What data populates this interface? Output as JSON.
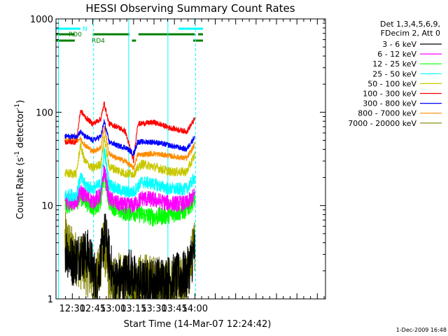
{
  "chart_data": {
    "type": "line",
    "title": "HESSI Observing Summary Count Rates",
    "xlabel": "Start Time (14-Mar-07 12:24:42)",
    "ylabel": "Count Rate (s",
    "ylabel_sup": "-1",
    "ylabel_tail": " detector",
    "ylabel_close": ")",
    "yscale": "log",
    "ylim": [
      1,
      1000
    ],
    "y_ticks": [
      {
        "value": 1,
        "label": "1"
      },
      {
        "value": 10,
        "label": "10"
      },
      {
        "value": 100,
        "label": "100"
      },
      {
        "value": 1000,
        "label": "1000"
      }
    ],
    "xlim_minutes": [
      12.3,
      15.6
    ],
    "x_ticks": [
      {
        "minutes": 12.5,
        "label": "12:30"
      },
      {
        "minutes": 12.75,
        "label": "12:45"
      },
      {
        "minutes": 13.0,
        "label": "13:00"
      },
      {
        "minutes": 13.25,
        "label": "13:15"
      },
      {
        "minutes": 13.5,
        "label": "13:30"
      },
      {
        "minutes": 13.75,
        "label": "13:45"
      },
      {
        "minutes": 14.0,
        "label": "14:00"
      }
    ],
    "legend_header": [
      "Det 1,3,4,5,6,9,",
      "FDecim 2, Att 0"
    ],
    "legend_position": "right",
    "series": [
      {
        "name": "3 - 6 keV",
        "color": "#000000",
        "points": [
          [
            12.41,
            3.5
          ],
          [
            12.5,
            2.5
          ],
          [
            12.6,
            3
          ],
          [
            12.7,
            3
          ],
          [
            12.8,
            1.5
          ],
          [
            12.9,
            5
          ],
          [
            13.0,
            1.6
          ],
          [
            13.1,
            1.5
          ],
          [
            13.2,
            2
          ],
          [
            13.3,
            1.4
          ],
          [
            13.5,
            1.5
          ],
          [
            13.7,
            1.6
          ],
          [
            13.9,
            1.8
          ],
          [
            14.0,
            3.5
          ]
        ]
      },
      {
        "name": "6 - 12 keV",
        "color": "#ff00ff",
        "points": [
          [
            12.41,
            11
          ],
          [
            12.55,
            11
          ],
          [
            12.6,
            14
          ],
          [
            12.7,
            12
          ],
          [
            12.75,
            11
          ],
          [
            12.85,
            13
          ],
          [
            12.89,
            25
          ],
          [
            12.95,
            12
          ],
          [
            13.05,
            10.5
          ],
          [
            13.15,
            10
          ],
          [
            13.25,
            10
          ],
          [
            13.35,
            12
          ],
          [
            13.5,
            11.5
          ],
          [
            13.7,
            10.5
          ],
          [
            13.9,
            10.5
          ],
          [
            14.0,
            13
          ]
        ]
      },
      {
        "name": "12 - 25 keV",
        "color": "#00ff00",
        "points": [
          [
            12.41,
            10
          ],
          [
            12.55,
            11
          ],
          [
            12.6,
            12.5
          ],
          [
            12.7,
            10.5
          ],
          [
            12.75,
            9.5
          ],
          [
            12.85,
            11
          ],
          [
            12.89,
            22
          ],
          [
            12.95,
            11
          ],
          [
            13.05,
            9
          ],
          [
            13.15,
            8.5
          ],
          [
            13.25,
            8.5
          ],
          [
            13.35,
            8
          ],
          [
            13.5,
            7.5
          ],
          [
            13.7,
            8
          ],
          [
            13.9,
            9
          ],
          [
            14.0,
            12
          ]
        ]
      },
      {
        "name": "25 - 50 keV",
        "color": "#00ffff",
        "points": [
          [
            12.41,
            13
          ],
          [
            12.55,
            13
          ],
          [
            12.6,
            20
          ],
          [
            12.65,
            17
          ],
          [
            12.75,
            15
          ],
          [
            12.85,
            17
          ],
          [
            12.89,
            40
          ],
          [
            12.95,
            17
          ],
          [
            13.05,
            15
          ],
          [
            13.15,
            14
          ],
          [
            13.25,
            14
          ],
          [
            13.35,
            18
          ],
          [
            13.5,
            17
          ],
          [
            13.7,
            15
          ],
          [
            13.9,
            15
          ],
          [
            14.0,
            20
          ]
        ]
      },
      {
        "name": "50 - 100 keV",
        "color": "#c8c800",
        "points": [
          [
            12.41,
            22
          ],
          [
            12.55,
            22
          ],
          [
            12.6,
            45
          ],
          [
            12.65,
            30
          ],
          [
            12.75,
            25
          ],
          [
            12.85,
            28
          ],
          [
            12.89,
            55
          ],
          [
            12.95,
            26
          ],
          [
            13.05,
            24
          ],
          [
            13.15,
            22
          ],
          [
            13.25,
            22
          ],
          [
            13.35,
            28
          ],
          [
            13.5,
            26
          ],
          [
            13.7,
            23
          ],
          [
            13.9,
            23
          ],
          [
            14.0,
            35
          ]
        ]
      },
      {
        "name": "100 - 300 keV",
        "color": "#ff0000",
        "points": [
          [
            12.41,
            48
          ],
          [
            12.55,
            48
          ],
          [
            12.6,
            105
          ],
          [
            12.65,
            90
          ],
          [
            12.75,
            75
          ],
          [
            12.85,
            85
          ],
          [
            12.89,
            125
          ],
          [
            12.95,
            75
          ],
          [
            13.05,
            70
          ],
          [
            13.15,
            62
          ],
          [
            13.25,
            30
          ],
          [
            13.3,
            75
          ],
          [
            13.5,
            78
          ],
          [
            13.7,
            68
          ],
          [
            13.9,
            62
          ],
          [
            14.0,
            85
          ]
        ]
      },
      {
        "name": "300 - 800 keV",
        "color": "#0000ff",
        "points": [
          [
            12.41,
            55
          ],
          [
            12.55,
            55
          ],
          [
            12.6,
            62
          ],
          [
            12.65,
            55
          ],
          [
            12.75,
            50
          ],
          [
            12.85,
            55
          ],
          [
            12.89,
            80
          ],
          [
            12.95,
            48
          ],
          [
            13.05,
            44
          ],
          [
            13.15,
            42
          ],
          [
            13.25,
            36
          ],
          [
            13.3,
            48
          ],
          [
            13.5,
            48
          ],
          [
            13.7,
            44
          ],
          [
            13.9,
            40
          ],
          [
            14.0,
            55
          ]
        ]
      },
      {
        "name": "800 - 7000 keV",
        "color": "#ff8c00",
        "points": [
          [
            12.41,
            50
          ],
          [
            12.55,
            50
          ],
          [
            12.6,
            52
          ],
          [
            12.65,
            45
          ],
          [
            12.75,
            38
          ],
          [
            12.85,
            42
          ],
          [
            12.89,
            70
          ],
          [
            12.95,
            36
          ],
          [
            13.05,
            32
          ],
          [
            13.15,
            30
          ],
          [
            13.25,
            25
          ],
          [
            13.3,
            35
          ],
          [
            13.5,
            36
          ],
          [
            13.7,
            34
          ],
          [
            13.9,
            32
          ],
          [
            14.0,
            45
          ]
        ]
      },
      {
        "name": "7000 - 20000 keV",
        "color": "#808000",
        "points": [
          [
            12.41,
            4.5
          ],
          [
            12.5,
            3
          ],
          [
            12.6,
            2.5
          ],
          [
            12.7,
            2
          ],
          [
            12.8,
            1.5
          ],
          [
            12.89,
            4
          ],
          [
            12.95,
            1.5
          ],
          [
            13.05,
            1.6
          ],
          [
            13.15,
            1.5
          ],
          [
            13.25,
            1.4
          ],
          [
            13.35,
            1.6
          ],
          [
            13.5,
            1.5
          ],
          [
            13.7,
            1.4
          ],
          [
            13.9,
            1.5
          ],
          [
            14.0,
            4
          ]
        ]
      }
    ],
    "flag_bars": [
      {
        "label": "N",
        "color": "#00ffff",
        "segments": [
          [
            12.3,
            12.6
          ],
          [
            13.8,
            14.1
          ]
        ]
      },
      {
        "label": "RD0",
        "color": "#008000",
        "segments": [
          [
            12.3,
            12.53
          ],
          [
            12.75,
            13.2
          ],
          [
            13.31,
            14.0
          ],
          [
            14.04,
            14.1
          ]
        ]
      },
      {
        "label": "RD4",
        "color": "#008000",
        "segments": [
          [
            12.3,
            12.53
          ],
          [
            13.23,
            13.28
          ],
          [
            13.98,
            14.1
          ]
        ]
      }
    ],
    "vertical_markers": [
      {
        "minutes": 12.33,
        "color": "#00ffff",
        "style": "solid"
      },
      {
        "minutes": 12.76,
        "color": "#00ffff",
        "style": "dashed"
      },
      {
        "minutes": 13.19,
        "color": "#00ffff",
        "style": "solid"
      },
      {
        "minutes": 13.67,
        "color": "#00ffff",
        "style": "solid"
      },
      {
        "minutes": 14.01,
        "color": "#00ffff",
        "style": "dashed"
      }
    ],
    "timestamp": "1-Dec-2009 16:48"
  }
}
